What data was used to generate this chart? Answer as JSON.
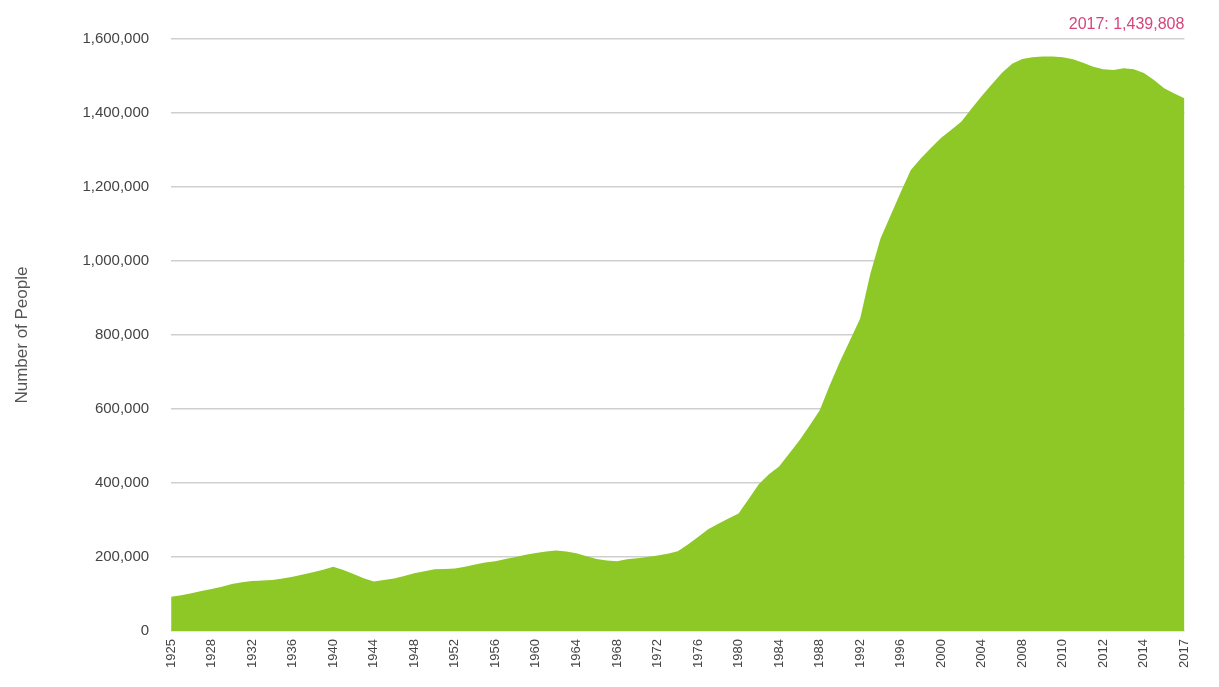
{
  "chart_data": {
    "type": "area",
    "ylabel": "Number of People",
    "categories": [
      "1925",
      null,
      null,
      null,
      "1928",
      null,
      null,
      null,
      "1932",
      null,
      null,
      null,
      "1936",
      null,
      null,
      null,
      "1940",
      null,
      null,
      null,
      "1944",
      null,
      null,
      null,
      "1948",
      null,
      null,
      null,
      "1952",
      null,
      null,
      null,
      "1956",
      null,
      null,
      null,
      "1960",
      null,
      null,
      null,
      "1964",
      null,
      null,
      null,
      "1968",
      null,
      null,
      null,
      "1972",
      null,
      null,
      null,
      "1976",
      null,
      null,
      null,
      "1980",
      null,
      null,
      null,
      "1984",
      null,
      null,
      null,
      "1988",
      null,
      null,
      null,
      "1992",
      null,
      null,
      null,
      "1996",
      null,
      null,
      null,
      "2000",
      null,
      null,
      null,
      "2004",
      null,
      null,
      null,
      "2008",
      null,
      null,
      null,
      "2010",
      null,
      null,
      null,
      "2012",
      null,
      null,
      null,
      "2014",
      null,
      null,
      null,
      "2017"
    ],
    "series": [
      {
        "color": "#8dc826",
        "values": [
          93000,
          97000,
          102000,
          108000,
          114000,
          120000,
          127000,
          132000,
          135000,
          137000,
          138000,
          142000,
          147000,
          153000,
          159000,
          166000,
          174000,
          165000,
          154000,
          143000,
          134000,
          138000,
          142000,
          149000,
          156000,
          162000,
          167000,
          168000,
          169000,
          174000,
          180000,
          185000,
          189000,
          195000,
          200000,
          206000,
          211000,
          215000,
          218000,
          215000,
          210000,
          202000,
          195000,
          191000,
          189000,
          194000,
          197000,
          200000,
          204000,
          209000,
          216000,
          234000,
          254000,
          275000,
          290000,
          304000,
          318000,
          357000,
          397000,
          424000,
          445000,
          480000,
          515000,
          555000,
          596000,
          664000,
          728000,
          786000,
          845000,
          965000,
          1060000,
          1123000,
          1186000,
          1246000,
          1278000,
          1306000,
          1333000,
          1355000,
          1377000,
          1412000,
          1446000,
          1478000,
          1509000,
          1533000,
          1546000,
          1551000,
          1553000,
          1553000,
          1551000,
          1545000,
          1536000,
          1525000,
          1518000,
          1516000,
          1521000,
          1518000,
          1508000,
          1489000,
          1467000,
          1453000,
          1439808
        ]
      }
    ],
    "ylim": [
      0,
      1600000
    ],
    "yticks": [
      0,
      {
        "value": 200000,
        "label": "200,000"
      },
      {
        "value": 400000,
        "label": "400,000"
      },
      {
        "value": 600000,
        "label": "600,000"
      },
      {
        "value": 800000,
        "label": "800,000"
      },
      {
        "value": 1000000,
        "label": "1,000,000"
      },
      {
        "value": 1200000,
        "label": "1,200,000"
      },
      {
        "value": 1400000,
        "label": "1,400,000"
      },
      {
        "value": 1600000,
        "label": "1,600,000"
      }
    ],
    "grid": "y",
    "legend": false,
    "annotations": [
      "2017: 1,439,808"
    ]
  }
}
